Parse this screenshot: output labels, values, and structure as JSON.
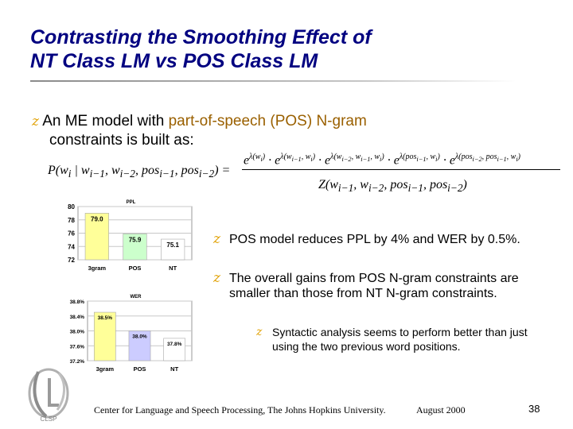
{
  "title": {
    "line1": "Contrasting the Smoothing Effect of",
    "line2": "NT Class LM vs POS Class LM"
  },
  "bullets": {
    "main": {
      "marker": "z",
      "pre": "An ME model with ",
      "highlight": "part-of-speech (POS) N-gram",
      "line2": "constraints is built as:"
    },
    "right": [
      {
        "marker": "z",
        "text": "POS model reduces PPL by 4% and WER by 0.5%."
      },
      {
        "marker": "z",
        "text": "The overall gains from POS N-gram constraints are smaller than those from NT N-gram constraints."
      }
    ],
    "sub": {
      "marker": "z",
      "text": "Syntactic analysis seems to perform better than just using the two previous word positions."
    }
  },
  "formula": {
    "lhs_text": "P(w",
    "rhs_den_text": "Z(w",
    "equals": "="
  },
  "chart_data": [
    {
      "type": "bar",
      "title": "PPL",
      "categories": [
        "3gram",
        "POS",
        "NT"
      ],
      "values": [
        79.0,
        75.9,
        75.1
      ],
      "value_labels": [
        "79.0",
        "75.9",
        "75.1"
      ],
      "ylim": [
        72,
        80
      ],
      "yticks": [
        "72",
        "74",
        "76",
        "78",
        "80"
      ],
      "colors": [
        "#ffff99",
        "#ccffcc",
        "#ffffff"
      ],
      "grid": true
    },
    {
      "type": "bar",
      "title": "WER",
      "categories": [
        "3gram",
        "POS",
        "NT"
      ],
      "values": [
        38.5,
        38.0,
        37.8
      ],
      "value_labels": [
        "38.5%",
        "38.0%",
        "37.8%"
      ],
      "ylim": [
        37.2,
        38.8
      ],
      "yticks": [
        "37.2%",
        "37.6%",
        "38.0%",
        "38.4%",
        "38.8%"
      ],
      "colors": [
        "#ffff99",
        "#ccccff",
        "#ffffff"
      ],
      "grid": true
    }
  ],
  "footer": {
    "org": "Center for Language and Speech Processing, The Johns Hopkins University.",
    "date": "August 2000",
    "page": "38"
  },
  "logo": {
    "text": "CLSP",
    "icon": "clsp-logo"
  }
}
